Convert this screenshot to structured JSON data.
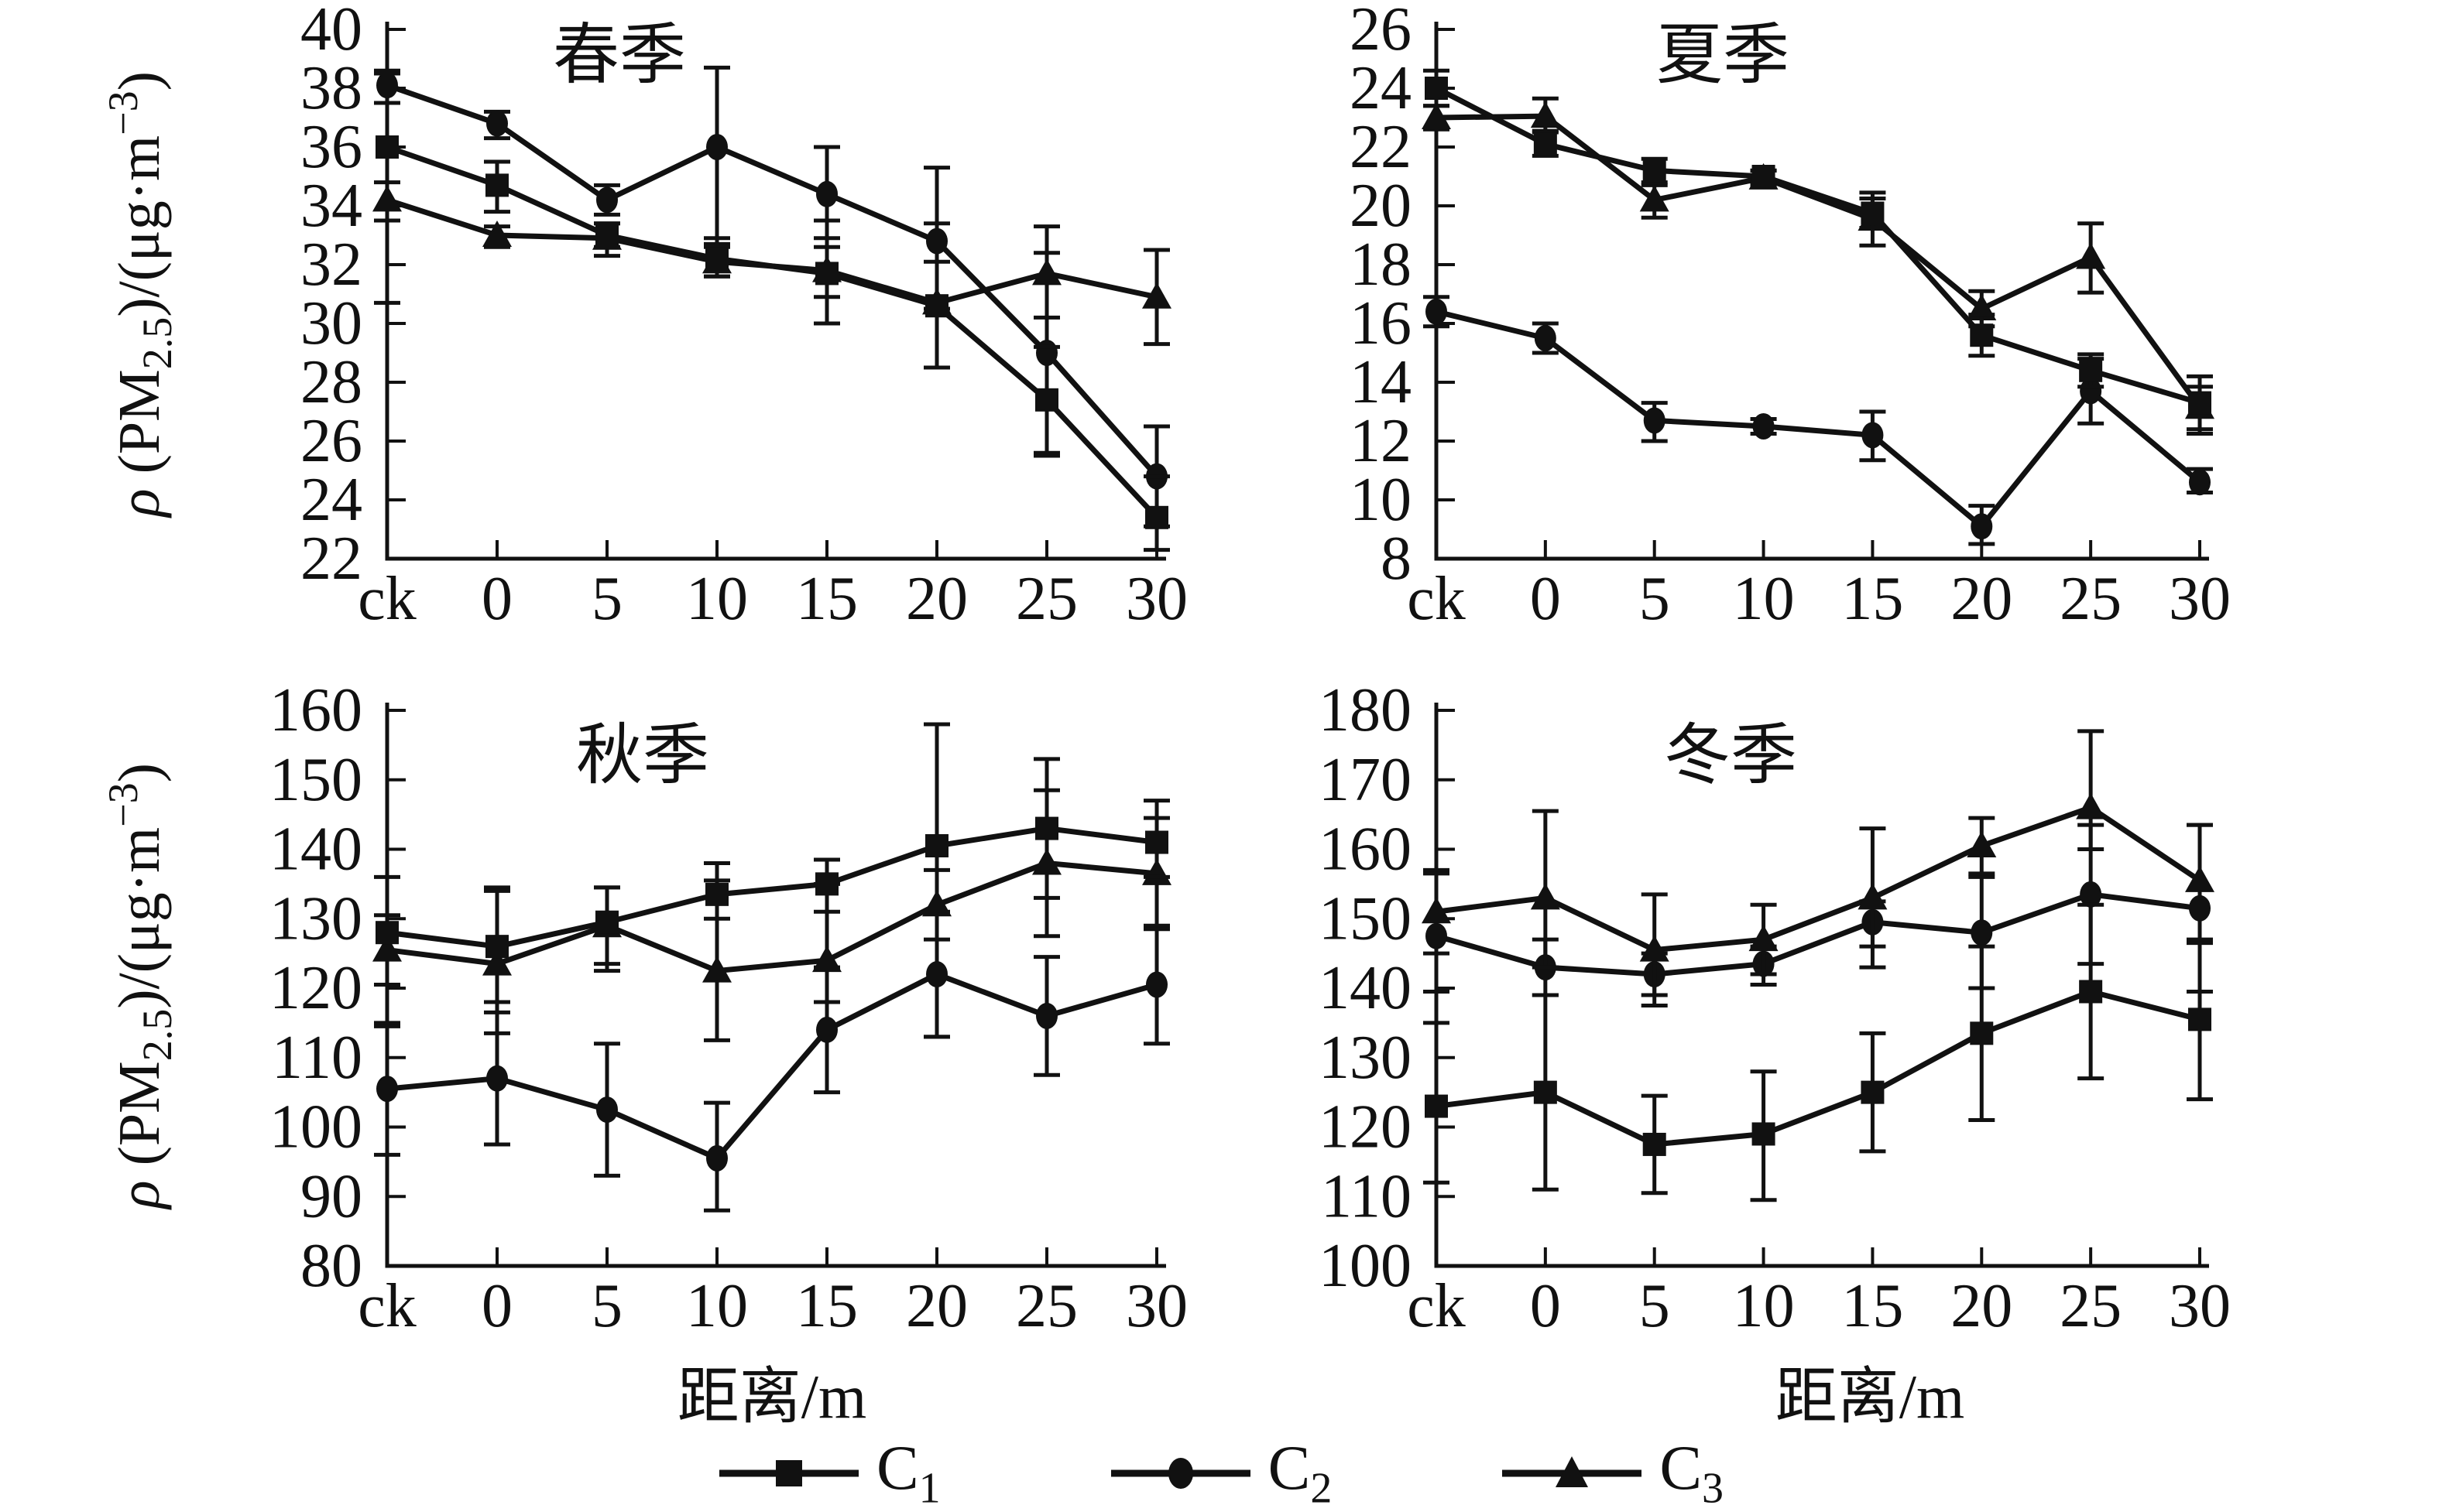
{
  "y_axis_title": {
    "rho": "ρ",
    "pre": " (PM",
    "sub": "2.5",
    "mid": ")/(μg·m",
    "sup": "−3",
    "post": ")"
  },
  "x_axis_title": "距离/m",
  "legend": {
    "items": [
      {
        "label": "C",
        "sub": "1",
        "marker": "square"
      },
      {
        "label": "C",
        "sub": "2",
        "marker": "circle"
      },
      {
        "label": "C",
        "sub": "3",
        "marker": "triangle"
      }
    ]
  },
  "colors": {
    "ink": "#111111",
    "background": "#ffffff"
  },
  "chart_data": [
    {
      "type": "line",
      "season_id": "spring",
      "title": "春季",
      "categories": [
        "ck",
        "0",
        "5",
        "10",
        "15",
        "20",
        "25",
        "30"
      ],
      "ylim": [
        22,
        40
      ],
      "y_ticks": [
        22,
        24,
        26,
        28,
        30,
        32,
        34,
        36,
        38,
        40
      ],
      "series": [
        {
          "name": "C1",
          "marker": "square",
          "values": [
            36.0,
            34.7,
            33.0,
            32.2,
            31.7,
            30.6,
            27.4,
            23.4
          ],
          "err_up": [
            2.5,
            0.8,
            0.4,
            0.7,
            1.8,
            1.5,
            1.8,
            1.4
          ],
          "err_down": [
            2.5,
            0.9,
            0.4,
            0.6,
            1.7,
            2.1,
            1.9,
            1.1
          ]
        },
        {
          "name": "C2",
          "marker": "circle",
          "values": [
            38.1,
            36.8,
            34.2,
            36.0,
            34.4,
            32.8,
            29.0,
            24.8
          ],
          "err_up": [
            0.5,
            0.4,
            0.5,
            2.7,
            1.6,
            2.5,
            3.4,
            1.7
          ],
          "err_down": [
            0.6,
            0.5,
            0.5,
            3.3,
            1.5,
            2.3,
            3.4,
            1.7
          ]
        },
        {
          "name": "C3",
          "marker": "triangle",
          "values": [
            34.2,
            33.0,
            32.9,
            32.1,
            31.8,
            30.7,
            31.7,
            30.9
          ],
          "err_up": [
            0.6,
            0.3,
            0.5,
            0.5,
            0.8,
            2.7,
            1.6,
            1.6
          ],
          "err_down": [
            3.5,
            0.4,
            0.6,
            0.5,
            0.9,
            2.2,
            1.5,
            1.6
          ]
        }
      ]
    },
    {
      "type": "line",
      "season_id": "summer",
      "title": "夏季",
      "categories": [
        "ck",
        "0",
        "5",
        "10",
        "15",
        "20",
        "25",
        "30"
      ],
      "ylim": [
        8,
        26
      ],
      "y_ticks": [
        8,
        10,
        12,
        14,
        16,
        18,
        20,
        22,
        24,
        26
      ],
      "series": [
        {
          "name": "C1",
          "marker": "square",
          "values": [
            24.0,
            22.1,
            21.2,
            21.0,
            19.75,
            15.6,
            14.4,
            13.3
          ],
          "err_up": [
            0.6,
            0.4,
            0.4,
            0.2,
            0.5,
            0.7,
            0.55,
            0.9
          ],
          "err_down": [
            0.6,
            0.4,
            0.4,
            0.2,
            0.5,
            0.7,
            0.55,
            0.9
          ]
        },
        {
          "name": "C2",
          "marker": "circle",
          "values": [
            16.4,
            15.5,
            12.7,
            12.5,
            12.2,
            9.1,
            13.7,
            10.6
          ],
          "err_up": [
            0.5,
            0.5,
            0.6,
            0.25,
            0.8,
            0.7,
            1.1,
            0.45
          ],
          "err_down": [
            0.5,
            0.5,
            0.7,
            0.25,
            0.85,
            0.6,
            1.1,
            0.35
          ]
        },
        {
          "name": "C3",
          "marker": "triangle",
          "values": [
            23.0,
            23.05,
            20.2,
            20.95,
            19.55,
            16.5,
            18.25,
            13.15
          ],
          "err_up": [
            0.4,
            0.6,
            0.5,
            0.25,
            0.9,
            0.6,
            1.15,
            0.7
          ],
          "err_down": [
            0.4,
            0.5,
            0.6,
            0.25,
            0.9,
            0.6,
            1.2,
            0.9
          ]
        }
      ]
    },
    {
      "type": "line",
      "season_id": "autumn",
      "title": "秋季",
      "categories": [
        "ck",
        "0",
        "5",
        "10",
        "15",
        "20",
        "25",
        "30"
      ],
      "ylim": [
        80,
        160
      ],
      "y_ticks": [
        80,
        90,
        100,
        110,
        120,
        130,
        140,
        150,
        160
      ],
      "series": [
        {
          "name": "C1",
          "marker": "square",
          "values": [
            128,
            126,
            129.5,
            133.5,
            135,
            140.5,
            143,
            141
          ],
          "err_up": [
            8,
            8,
            5,
            4.5,
            3.5,
            17.5,
            10,
            6
          ],
          "err_down": [
            13,
            8,
            7,
            3.5,
            4,
            27.5,
            10,
            5
          ]
        },
        {
          "name": "C2",
          "marker": "circle",
          "values": [
            105.5,
            107,
            102.5,
            95.5,
            114,
            122,
            116,
            120.5
          ],
          "err_up": [
            9,
            9.5,
            9.5,
            8,
            9,
            9,
            8.5,
            8.5
          ],
          "err_down": [
            9.5,
            9.5,
            9.5,
            7.5,
            9,
            9,
            8.5,
            8.5
          ]
        },
        {
          "name": "C3",
          "marker": "triangle",
          "values": [
            125.5,
            123.5,
            129,
            122.5,
            124,
            132,
            138,
            136.5
          ],
          "err_up": [
            5,
            11,
            5.5,
            13,
            11,
            5,
            10.5,
            8
          ],
          "err_down": [
            5,
            10,
            5.5,
            10,
            6,
            5,
            10.5,
            8
          ]
        }
      ]
    },
    {
      "type": "line",
      "season_id": "winter",
      "title": "冬季",
      "categories": [
        "ck",
        "0",
        "5",
        "10",
        "15",
        "20",
        "25",
        "30"
      ],
      "ylim": [
        100,
        180
      ],
      "y_ticks": [
        100,
        110,
        120,
        130,
        140,
        150,
        160,
        170,
        180
      ],
      "series": [
        {
          "name": "C1",
          "marker": "square",
          "values": [
            123,
            125,
            117.5,
            119,
            125,
            133.5,
            139.5,
            135.5
          ],
          "err_up": [
            12,
            14,
            7,
            9,
            8.5,
            12.5,
            12.5,
            11.5
          ],
          "err_down": [
            11,
            14,
            7,
            9.5,
            8.5,
            12.5,
            12.5,
            11.5
          ]
        },
        {
          "name": "C2",
          "marker": "circle",
          "values": [
            147.5,
            143,
            142,
            143.5,
            149.5,
            148,
            153.5,
            151.5
          ],
          "err_up": [
            9,
            4,
            3,
            2.5,
            3,
            8,
            10,
            12
          ],
          "err_down": [
            8,
            4,
            3,
            3,
            3.5,
            8,
            10,
            12
          ]
        },
        {
          "name": "C3",
          "marker": "triangle",
          "values": [
            151,
            153,
            145.5,
            147,
            153,
            160.5,
            166,
            155.5
          ],
          "err_up": [
            6,
            12.5,
            8,
            5,
            10,
            4,
            11,
            8
          ],
          "err_down": [
            6,
            10,
            8,
            5,
            10,
            4,
            6,
            9
          ]
        }
      ]
    }
  ]
}
